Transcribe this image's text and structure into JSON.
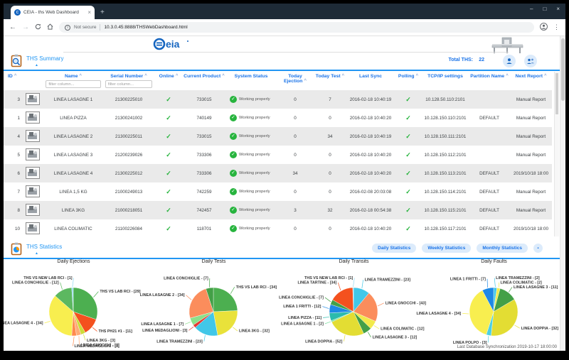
{
  "browser": {
    "tab_title": "CEIA - ths Web Dashboard",
    "tab_close": "×",
    "new_tab": "+",
    "back": "←",
    "forward": "→",
    "security_label": "Not secure",
    "url": "10.3.0.45:8888/THSWebDashboard.html",
    "kebab": "⋮",
    "controls": {
      "minimize": "–",
      "maximize": "□",
      "close": "×"
    }
  },
  "header": {
    "logo_text": "Ceia",
    "summary_title": "THS Summary",
    "collapse_arrow": "▲",
    "total_ths_label": "Total THS:",
    "total_ths_value": "22"
  },
  "table": {
    "filter_placeholder": "filter column...",
    "status_ok_text": "Working properly",
    "columns": [
      {
        "label": "ID",
        "sort": true
      },
      {
        "label": "",
        "sort": false
      },
      {
        "label": "Name",
        "sort": true,
        "filter": true
      },
      {
        "label": "Serial Number",
        "sort": true,
        "filter": true
      },
      {
        "label": "Online",
        "sort": true
      },
      {
        "label": "Current Product",
        "sort": true
      },
      {
        "label": "System Status",
        "sort": false
      },
      {
        "label": "Today Ejection",
        "sort": true
      },
      {
        "label": "Today Test",
        "sort": true
      },
      {
        "label": "Last Sync",
        "sort": false
      },
      {
        "label": "Polling",
        "sort": true
      },
      {
        "label": "TCP/IP settings",
        "sort": false
      },
      {
        "label": "Partition Name",
        "sort": true
      },
      {
        "label": "Next Report",
        "sort": true
      }
    ],
    "rows": [
      {
        "id": "3",
        "name": "LINEA LASAGNE 1",
        "serial": "21300225010",
        "online": true,
        "product": "733015",
        "status": "Working properly",
        "ejection": "0",
        "test": "7",
        "last_sync": "2016-02-18 10:40:19",
        "polling": true,
        "tcpip": "10.128.50.110:2101",
        "partition": "",
        "next_report": "Manual Report"
      },
      {
        "id": "1",
        "name": "LINEA PIZZA",
        "serial": "21300241002",
        "online": true,
        "product": "740149",
        "status": "Working properly",
        "ejection": "0",
        "test": "0",
        "last_sync": "2016-02-18 10:40:20",
        "polling": true,
        "tcpip": "10.128.150.110:2101",
        "partition": "DEFAULT",
        "next_report": "Manual Report"
      },
      {
        "id": "4",
        "name": "LINEA LASAGNE 2",
        "serial": "21300225011",
        "online": true,
        "product": "733015",
        "status": "Working properly",
        "ejection": "0",
        "test": "34",
        "last_sync": "2016-02-18 10:40:19",
        "polling": true,
        "tcpip": "10.128.150.111:2101",
        "partition": "",
        "next_report": "Manual Report"
      },
      {
        "id": "5",
        "name": "LINEA LASAGNE 3",
        "serial": "21200239026",
        "online": true,
        "product": "733306",
        "status": "Working properly",
        "ejection": "0",
        "test": "0",
        "last_sync": "2016-02-18 10:40:20",
        "polling": true,
        "tcpip": "10.128.150.112:2101",
        "partition": "",
        "next_report": "Manual Report"
      },
      {
        "id": "6",
        "name": "LINEA LASAGNE 4",
        "serial": "21300225012",
        "online": true,
        "product": "733306",
        "status": "Working properly",
        "ejection": "34",
        "test": "0",
        "last_sync": "2016-02-18 10:40:20",
        "polling": true,
        "tcpip": "10.128.150.113:2101",
        "partition": "DEFAULT",
        "next_report": "2019/10/18 18:00"
      },
      {
        "id": "7",
        "name": "LINEA 1,5 KG",
        "serial": "21000249013",
        "online": true,
        "product": "742259",
        "status": "Working properly",
        "ejection": "0",
        "test": "0",
        "last_sync": "2016-02-08 20:03:08",
        "polling": true,
        "tcpip": "10.128.150.114:2101",
        "partition": "DEFAULT",
        "next_report": "Manual Report"
      },
      {
        "id": "8",
        "name": "LINEA 3KG",
        "serial": "21000218051",
        "online": true,
        "product": "742457",
        "status": "Working properly",
        "ejection": "3",
        "test": "32",
        "last_sync": "2016-02-18 00:54:38",
        "polling": true,
        "tcpip": "10.128.150.115:2101",
        "partition": "DEFAULT",
        "next_report": "Manual Report"
      },
      {
        "id": "10",
        "name": "LINEA COLIMATIC",
        "serial": "21100226084",
        "online": true,
        "product": "118701",
        "status": "Working properly",
        "ejection": "0",
        "test": "0",
        "last_sync": "2016-02-18 10:40:20",
        "polling": true,
        "tcpip": "10.128.150.117:2101",
        "partition": "DEFAULT",
        "next_report": "2019/10/18 18:00"
      }
    ]
  },
  "statistics": {
    "title": "THS Statistics",
    "collapse_arrow": "▲",
    "buttons": [
      "Daily Statistics",
      "Weekly Statistics",
      "Monthly Statistics"
    ]
  },
  "chart_data": [
    {
      "type": "pie",
      "title": "Daily Ejections",
      "label_format": "{label} - [{value}]",
      "slices": [
        {
          "label": "THS VS LAB RCI",
          "value": 29,
          "color": "#4caf50"
        },
        {
          "label": "THS PH21 #1",
          "value": 11,
          "color": "#f4511e"
        },
        {
          "label": "LINEA 3KG",
          "value": 3,
          "color": "#cddc39"
        },
        {
          "label": "LINEA GNOCCHI",
          "value": 3,
          "color": "#ffab76"
        },
        {
          "label": "LINEA MEDAGLIONI",
          "value": 3,
          "color": "#ff8a4d"
        },
        {
          "label": "LINEA LASAGNE 4",
          "value": 34,
          "color": "#f8ee4f"
        },
        {
          "label": "LINEA CONCHIGLIE",
          "value": 12,
          "color": "#5cb860"
        },
        {
          "label": "THS VS NEW LAB RCI",
          "value": 1,
          "color": "#8fd9f2"
        }
      ]
    },
    {
      "type": "pie",
      "title": "Daily Tests",
      "label_format": "{label} - [{value}]",
      "slices": [
        {
          "label": "THS VS LAB RCI",
          "value": 34,
          "color": "#4caf50"
        },
        {
          "label": "LINEA 3KG",
          "value": 32,
          "color": "#e9e23a"
        },
        {
          "label": "LINEA TRAMEZZINI",
          "value": 23,
          "color": "#41c7e8"
        },
        {
          "label": "LINEA MEDAGLIONI",
          "value": 3,
          "color": "#e53935"
        },
        {
          "label": "LINEA LASAGNE 1",
          "value": 7,
          "color": "#8ce08a"
        },
        {
          "label": "LINEA LASAGNE 2",
          "value": 34,
          "color": "#fb8d5c"
        },
        {
          "label": "LINEA CONCHIGLIE",
          "value": 7,
          "color": "#43a047"
        }
      ]
    },
    {
      "type": "pie",
      "title": "Daily Transits",
      "label_format": "{label} - [{value}]",
      "slices": [
        {
          "label": "LINEA TRAMEZZINI",
          "value": 23,
          "color": "#41c7e8"
        },
        {
          "label": "LINEA GNOCCHI",
          "value": 43,
          "color": "#fb8d5c"
        },
        {
          "label": "LINEA COLIMATIC",
          "value": 12,
          "color": "#f2ea4a"
        },
        {
          "label": "LINEA LASAGNE 3",
          "value": 12,
          "color": "#43a047"
        },
        {
          "label": "LINEA DOPPIA",
          "value": 52,
          "color": "#e3dd33"
        },
        {
          "label": "LINEA LASAGNE 1",
          "value": 2,
          "color": "#7de0a0"
        },
        {
          "label": "LINEA PIZZA",
          "value": 11,
          "color": "#2bbbad"
        },
        {
          "label": "LINEA 1 FRITTI",
          "value": 12,
          "color": "#1e88e5"
        },
        {
          "label": "LINEA CONCHIGLIE",
          "value": 7,
          "color": "#43a047"
        },
        {
          "label": "LINEA TARTINE",
          "value": 34,
          "color": "#f4511e"
        },
        {
          "label": "THS VS NEW LAB RCI",
          "value": 1,
          "color": "#8fd9f2"
        }
      ]
    },
    {
      "type": "pie",
      "title": "Daily Faults",
      "label_format": "{label} - [{value}]",
      "slices": [
        {
          "label": "LINEA TRAMEZZINI",
          "value": 2,
          "color": "#41c7e8"
        },
        {
          "label": "LINEA COLIMATIC",
          "value": 2,
          "color": "#f2ea4a"
        },
        {
          "label": "LINEA LASAGNE 3",
          "value": 11,
          "color": "#43a047"
        },
        {
          "label": "LINEA DOPPIA",
          "value": 32,
          "color": "#e3dd33"
        },
        {
          "label": "LINEA POLPO",
          "value": 3,
          "color": "#4dd0e1"
        },
        {
          "label": "LINEA LASAGNE 4",
          "value": 34,
          "color": "#f8ee4f"
        },
        {
          "label": "LINEA 1 FRITTI",
          "value": 7,
          "color": "#1e88e5"
        }
      ]
    }
  ],
  "footer": {
    "last_sync": "Last Database Synchronization 2019-10-17 18:00:00"
  }
}
